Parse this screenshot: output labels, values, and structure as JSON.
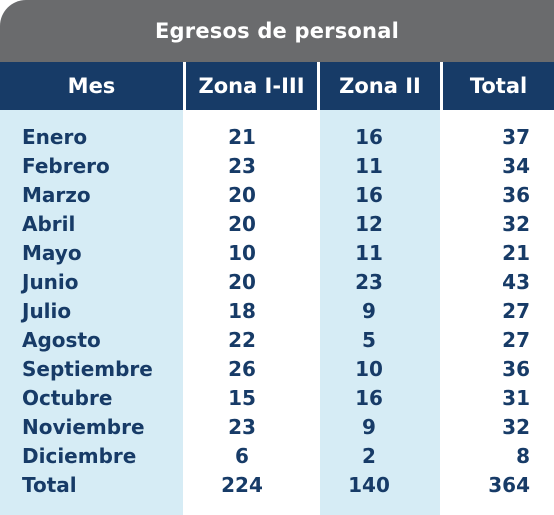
{
  "title": "Egresos de personal",
  "headers": [
    "Mes",
    "Zona I-III",
    "Zona II",
    "Total"
  ],
  "rows": [
    {
      "mes": "Enero",
      "zona_i_iii": "21",
      "zona_ii": "16",
      "total": "37"
    },
    {
      "mes": "Febrero",
      "zona_i_iii": "23",
      "zona_ii": "11",
      "total": "34"
    },
    {
      "mes": "Marzo",
      "zona_i_iii": "20",
      "zona_ii": "16",
      "total": "36"
    },
    {
      "mes": "Abril",
      "zona_i_iii": "20",
      "zona_ii": "12",
      "total": "32"
    },
    {
      "mes": "Mayo",
      "zona_i_iii": "10",
      "zona_ii": "11",
      "total": "21"
    },
    {
      "mes": "Junio",
      "zona_i_iii": "20",
      "zona_ii": "23",
      "total": "43"
    },
    {
      "mes": "Julio",
      "zona_i_iii": "18",
      "zona_ii": "9",
      "total": "27"
    },
    {
      "mes": "Agosto",
      "zona_i_iii": "22",
      "zona_ii": "5",
      "total": "27"
    },
    {
      "mes": "Septiembre",
      "zona_i_iii": "26",
      "zona_ii": "10",
      "total": "36"
    },
    {
      "mes": "Octubre",
      "zona_i_iii": "15",
      "zona_ii": "16",
      "total": "31"
    },
    {
      "mes": "Noviembre",
      "zona_i_iii": "23",
      "zona_ii": "9",
      "total": "32"
    },
    {
      "mes": "Diciembre",
      "zona_i_iii": "6",
      "zona_ii": "2",
      "total": "8"
    },
    {
      "mes": "Total",
      "zona_i_iii": "224",
      "zona_ii": "140",
      "total": "364"
    }
  ],
  "colors": {
    "title_bg": "#6a6b6d",
    "header_bg": "#173b67",
    "shaded_column_bg": "#d6ecf5",
    "text": "#173b67"
  }
}
